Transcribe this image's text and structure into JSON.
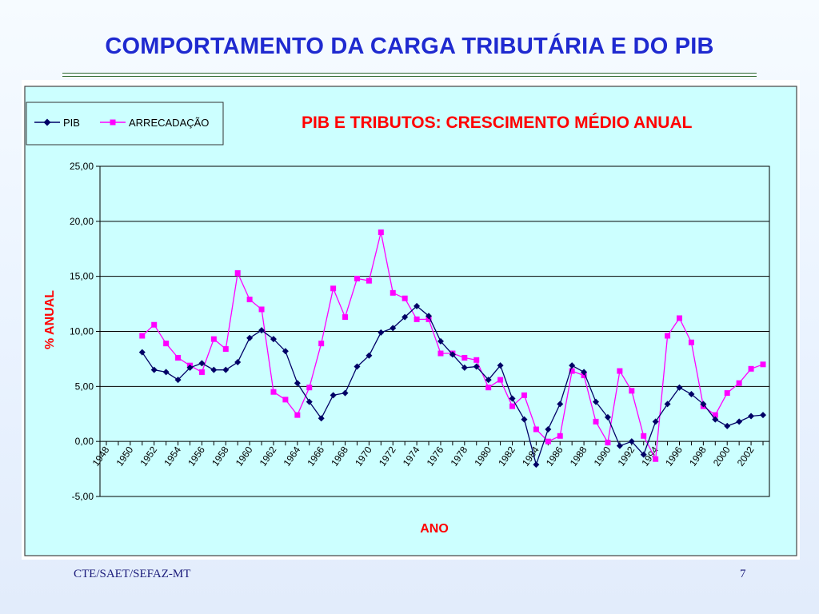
{
  "slide": {
    "title": "COMPORTAMENTO DA CARGA TRIBUTÁRIA E DO PIB",
    "footer_left": "CTE/SAET/SEFAZ-MT",
    "page_number": "7"
  },
  "colors": {
    "title": "#1f2ad0",
    "chart_title": "#ff0000",
    "axis_label": "#ff0000",
    "plot_background": "#ccffff",
    "pib_series": "#000066",
    "arrecadacao_series": "#ff00ff"
  },
  "chart_data": {
    "type": "line",
    "title": "PIB E TRIBUTOS: CRESCIMENTO MÉDIO ANUAL",
    "xlabel": "ANO",
    "ylabel": "% ANUAL",
    "ylim": [
      -5,
      25
    ],
    "yticks": [
      "25,00",
      "20,00",
      "15,00",
      "10,00",
      "5,00",
      "0,00",
      "-5,00"
    ],
    "ytick_values": [
      25,
      20,
      15,
      10,
      5,
      0,
      -5
    ],
    "xlim": [
      1948,
      2003
    ],
    "xtick_labels": [
      "1948",
      "1950",
      "1952",
      "1954",
      "1956",
      "1958",
      "1960",
      "1962",
      "1964",
      "1966",
      "1968",
      "1970",
      "1972",
      "1974",
      "1976",
      "1978",
      "1980",
      "1982",
      "1984",
      "1986",
      "1988",
      "1990",
      "1992",
      "1994",
      "1996",
      "1998",
      "2000",
      "2002"
    ],
    "grid": true,
    "legend_position": "top-left",
    "x": [
      1951,
      1952,
      1953,
      1954,
      1955,
      1956,
      1957,
      1958,
      1959,
      1960,
      1961,
      1962,
      1963,
      1964,
      1965,
      1966,
      1967,
      1968,
      1969,
      1970,
      1971,
      1972,
      1973,
      1974,
      1975,
      1976,
      1977,
      1978,
      1979,
      1980,
      1981,
      1982,
      1983,
      1984,
      1985,
      1986,
      1987,
      1988,
      1989,
      1990,
      1991,
      1992,
      1993,
      1994,
      1995,
      1996,
      1997,
      1998,
      1999,
      2000,
      2001,
      2002,
      2003
    ],
    "series": [
      {
        "name": "PIB",
        "marker": "diamond",
        "values": [
          8.1,
          6.5,
          6.3,
          5.6,
          6.7,
          7.1,
          6.5,
          6.5,
          7.2,
          9.4,
          10.1,
          9.3,
          8.2,
          5.3,
          3.6,
          2.1,
          4.2,
          4.4,
          6.8,
          7.8,
          9.9,
          10.3,
          11.3,
          12.3,
          11.4,
          9.1,
          7.9,
          6.7,
          6.8,
          5.6,
          6.9,
          3.9,
          2.0,
          -2.1,
          1.1,
          3.4,
          6.9,
          6.3,
          3.6,
          2.2,
          -0.4,
          0.0,
          -1.2,
          1.8,
          3.4,
          4.9,
          4.3,
          3.4,
          2.0,
          1.4,
          1.8,
          2.3,
          2.4
        ]
      },
      {
        "name": "ARRECADAÇÃO",
        "marker": "square",
        "values": [
          9.6,
          10.6,
          8.9,
          7.6,
          6.9,
          6.3,
          9.3,
          8.4,
          15.3,
          12.9,
          12.0,
          4.5,
          3.8,
          2.4,
          4.9,
          8.9,
          13.9,
          11.3,
          14.8,
          14.6,
          19.0,
          13.5,
          13.0,
          11.1,
          11.1,
          8.0,
          8.0,
          7.6,
          7.4,
          4.9,
          5.6,
          3.2,
          4.2,
          1.1,
          0.0,
          0.5,
          6.4,
          6.0,
          1.8,
          -0.1,
          6.4,
          4.6,
          0.5,
          -1.6,
          9.6,
          11.2,
          9.0,
          3.2,
          2.4,
          4.4,
          5.3,
          6.6,
          7.0
        ]
      }
    ]
  }
}
